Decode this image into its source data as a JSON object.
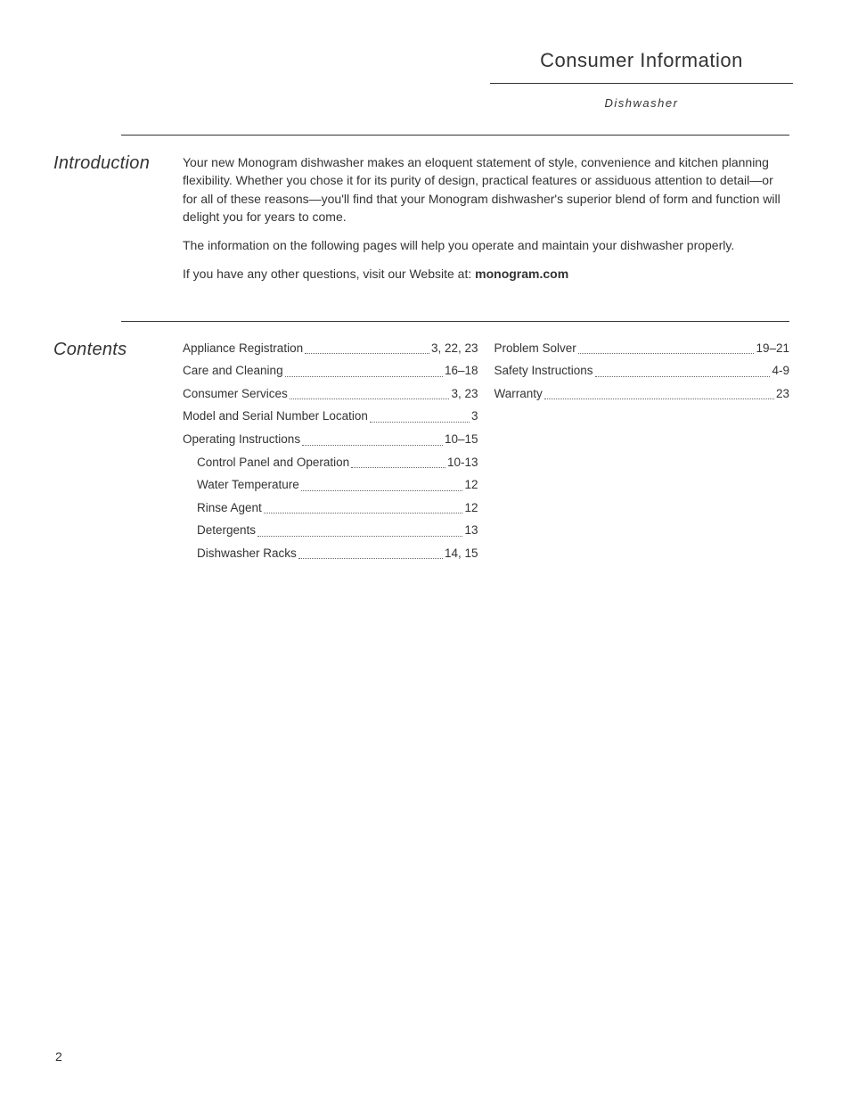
{
  "header": {
    "title": "Consumer Information",
    "subtitle": "Dishwasher"
  },
  "introduction": {
    "label": "Introduction",
    "paragraphs": [
      "Your new Monogram dishwasher makes an eloquent statement of style, convenience and kitchen planning flexibility. Whether you chose it for its purity of design, practical features or assiduous attention to detail—or for all of these reasons—you'll find that your Monogram dishwasher's superior blend of form and function will delight you for years to come.",
      "The information on the following pages will help you operate and maintain your dishwasher properly."
    ],
    "website_prefix": "If you have any other questions, visit our Website at: ",
    "website": "monogram.com"
  },
  "contents": {
    "label": "Contents",
    "column1": [
      {
        "label": "Appliance Registration",
        "page": "3, 22, 23",
        "indent": false
      },
      {
        "label": "Care and Cleaning",
        "page": "16–18",
        "indent": false
      },
      {
        "label": "Consumer Services",
        "page": "3, 23",
        "indent": false
      },
      {
        "label": "Model and Serial Number Location",
        "page": "3",
        "indent": false
      },
      {
        "label": "Operating Instructions",
        "page": "10–15",
        "indent": false
      },
      {
        "label": "Control Panel and Operation",
        "page": "10-13",
        "indent": true
      },
      {
        "label": "Water Temperature",
        "page": "12",
        "indent": true
      },
      {
        "label": "Rinse Agent",
        "page": "12",
        "indent": true
      },
      {
        "label": "Detergents",
        "page": "13",
        "indent": true
      },
      {
        "label": "Dishwasher Racks",
        "page": "14, 15",
        "indent": true
      }
    ],
    "column2": [
      {
        "label": "Problem Solver",
        "page": "19–21",
        "indent": false
      },
      {
        "label": "Safety Instructions",
        "page": "4-9",
        "indent": false
      },
      {
        "label": "Warranty",
        "page": "23",
        "indent": false
      }
    ]
  },
  "pageNumber": "2"
}
